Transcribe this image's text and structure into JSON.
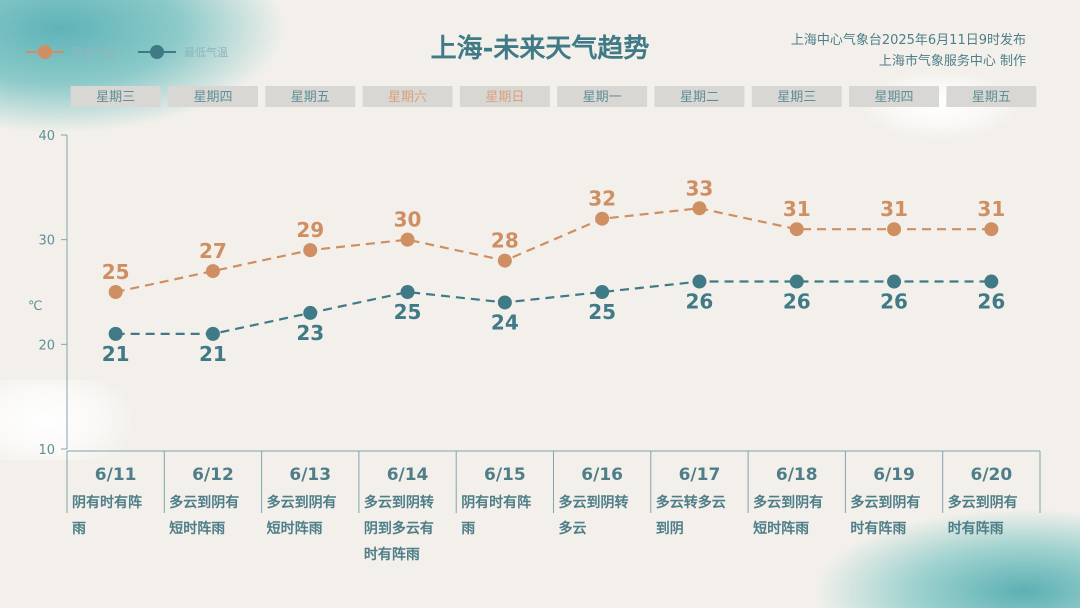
{
  "title": "上海-未来天气趋势",
  "publisher": {
    "line1": "上海中心气象台2025年6月11日9时发布",
    "line2": "上海市气象服务中心 制作"
  },
  "colors": {
    "high": "#cf8f62",
    "low": "#3f7a86",
    "weekday": "#5f8f96",
    "weekend": "#d6a27c",
    "box": "#d9d7d3"
  },
  "chart_data": {
    "type": "line",
    "title": "上海-未来天气趋势",
    "ylabel": "℃",
    "ylim": [
      10,
      40
    ],
    "yticks": [
      "10",
      "20",
      "30",
      "40"
    ],
    "weekdays": [
      "星期三",
      "星期四",
      "星期五",
      "星期六",
      "星期日",
      "星期一",
      "星期二",
      "星期三",
      "星期四",
      "星期五"
    ],
    "weekend": [
      false,
      false,
      false,
      true,
      true,
      false,
      false,
      false,
      false,
      false
    ],
    "categories": [
      "6/11",
      "6/12",
      "6/13",
      "6/14",
      "6/15",
      "6/16",
      "6/17",
      "6/18",
      "6/19",
      "6/20"
    ],
    "weather": [
      [
        "阴有时有阵",
        "雨"
      ],
      [
        "多云到阴有",
        "短时阵雨"
      ],
      [
        "多云到阴有",
        "短时阵雨"
      ],
      [
        "多云到阴转",
        "阴到多云有",
        "时有阵雨"
      ],
      [
        "阴有时有阵",
        "雨"
      ],
      [
        "多云到阴转",
        "多云"
      ],
      [
        "多云转多云",
        "到阴"
      ],
      [
        "多云到阴有",
        "短时阵雨"
      ],
      [
        "多云到阴有",
        "时有阵雨"
      ],
      [
        "多云到阴有",
        "时有阵雨"
      ]
    ],
    "series": [
      {
        "name": "最高气温",
        "values": [
          25,
          27,
          29,
          30,
          28,
          32,
          33,
          31,
          31,
          31
        ]
      },
      {
        "name": "最低气温",
        "values": [
          21,
          21,
          23,
          25,
          24,
          25,
          26,
          26,
          26,
          26
        ]
      }
    ],
    "legend": "top-left"
  }
}
